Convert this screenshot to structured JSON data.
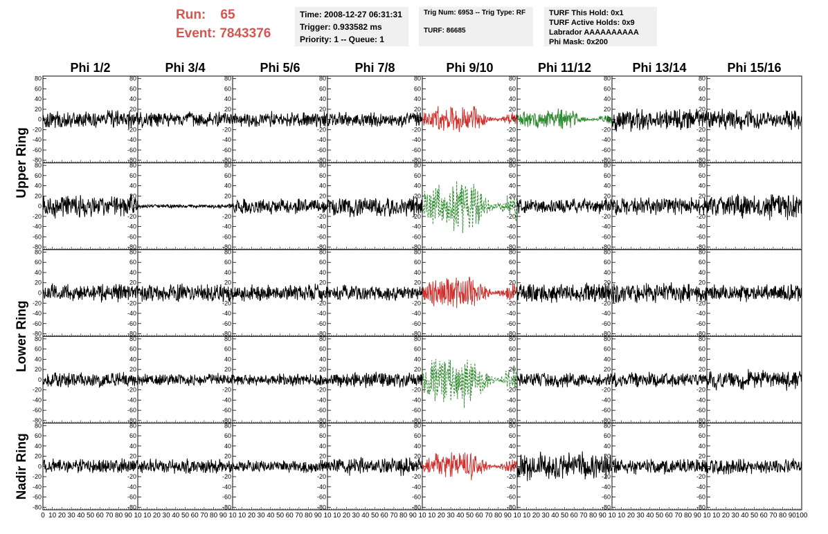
{
  "header": {
    "run_label": "Run:",
    "run_value": "65",
    "event_label": "Event:",
    "event_value": "7843376"
  },
  "time_box": {
    "line1": "Time: 2008-12-27 06:31:31",
    "line2": "Trigger: 0.933582 ms",
    "line3": "Priority: 1 -- Queue: 1"
  },
  "trig_box": {
    "line1": "Trig Num: 6953 -- Trig Type: RF",
    "line2": "TURF: 86685"
  },
  "turf_box": {
    "line1": "TURF This Hold: 0x1",
    "line2": "TURF Active Holds: 0x9",
    "line3": "Labrador AAAAAAAAAA",
    "line4": "Phi Mask: 0x200"
  },
  "colors": {
    "trace": "#000000",
    "triggered_red": "#d0312d",
    "triggered_green": "#2e8b2e",
    "header_red": "#d9534f"
  },
  "chart_data": {
    "type": "line",
    "columns": [
      "Phi 1/2",
      "Phi 3/4",
      "Phi 5/6",
      "Phi 7/8",
      "Phi 9/10",
      "Phi 11/12",
      "Phi 13/14",
      "Phi 15/16"
    ],
    "rows": [
      "Upper Ring",
      "Lower Ring",
      "Nadir Ring"
    ],
    "ylim": [
      -85,
      85
    ],
    "yticks": [
      -80,
      -60,
      -40,
      -20,
      0,
      20,
      40,
      60,
      80
    ],
    "xlim": [
      0,
      100
    ],
    "xticks": [
      0,
      10,
      20,
      30,
      40,
      50,
      60,
      70,
      80,
      90,
      100
    ],
    "xticks_first_col": [
      "0",
      "10",
      "20",
      "30",
      "40",
      "50",
      "60",
      "70",
      "80",
      "90",
      "10"
    ],
    "xticks_other_col": [
      "10",
      "20",
      "30",
      "40",
      "50",
      "60",
      "70",
      "80",
      "90",
      "10"
    ],
    "xticks_last_col": [
      "10",
      "20",
      "30",
      "40",
      "50",
      "60",
      "70",
      "80",
      "90",
      "100"
    ],
    "panel_rows": [
      {
        "ring": "Upper Ring",
        "amplitudes": [
          14,
          12,
          12,
          12,
          22,
          16,
          18,
          16
        ],
        "styles": [
          "black",
          "black",
          "black",
          "black",
          "red",
          "green",
          "black",
          "black"
        ]
      },
      {
        "ring": "Upper Ring",
        "amplitudes": [
          18,
          3,
          12,
          16,
          42,
          12,
          14,
          20
        ],
        "styles": [
          "black",
          "black",
          "black",
          "black",
          "green-dashed",
          "black",
          "black",
          "black"
        ]
      },
      {
        "ring": "Lower Ring",
        "amplitudes": [
          14,
          14,
          14,
          12,
          26,
          16,
          16,
          14
        ],
        "styles": [
          "black",
          "black",
          "black",
          "black",
          "red",
          "black",
          "black",
          "black"
        ]
      },
      {
        "ring": "Lower Ring",
        "amplitudes": [
          12,
          10,
          10,
          12,
          38,
          12,
          12,
          16
        ],
        "styles": [
          "black",
          "black",
          "black",
          "black",
          "green-dashed",
          "black",
          "black",
          "black"
        ]
      },
      {
        "ring": "Nadir Ring",
        "amplitudes": [
          12,
          12,
          10,
          14,
          22,
          22,
          12,
          12
        ],
        "styles": [
          "black",
          "black",
          "black",
          "black",
          "red",
          "black",
          "black",
          "black"
        ]
      }
    ]
  }
}
